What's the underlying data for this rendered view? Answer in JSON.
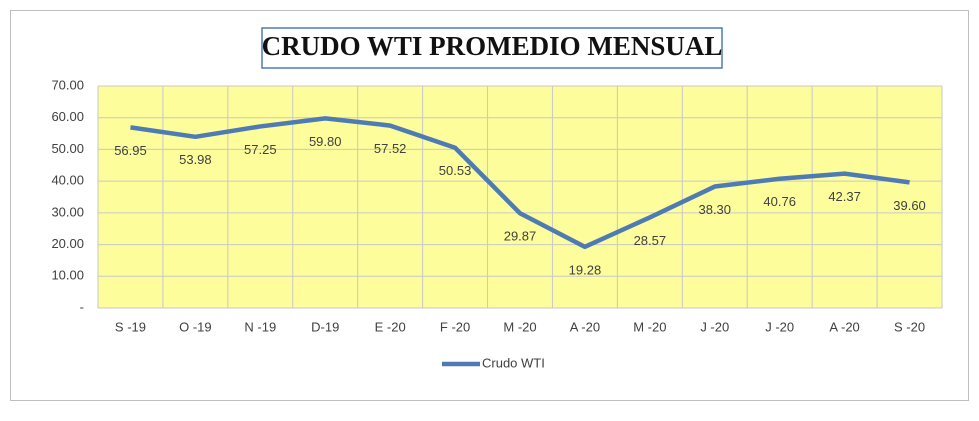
{
  "chart_data": {
    "type": "line",
    "title": "CRUDO WTI  PROMEDIO MENSUAL",
    "categories": [
      "S -19",
      "O -19",
      "N -19",
      "D-19",
      "E -20",
      "F -20",
      "M -20",
      "A -20",
      "M -20",
      "J -20",
      "J -20",
      "A -20",
      "S -20"
    ],
    "series": [
      {
        "name": "Crudo WTI",
        "color": "#4e7bb4",
        "values": [
          56.95,
          53.98,
          57.25,
          59.8,
          57.52,
          50.53,
          29.87,
          19.28,
          28.57,
          38.3,
          40.76,
          42.37,
          39.6
        ],
        "value_labels": [
          "56.95",
          "53.98",
          "57.25",
          "59.80",
          "57.52",
          "50.53",
          "29.87",
          "19.28",
          "28.57",
          "38.30",
          "40.76",
          "42.37",
          "39.60"
        ]
      }
    ],
    "ylim": [
      0,
      70
    ],
    "yticks": [
      {
        "value": 0,
        "label": "-"
      },
      {
        "value": 10,
        "label": "10.00"
      },
      {
        "value": 20,
        "label": "20.00"
      },
      {
        "value": 30,
        "label": "30.00"
      },
      {
        "value": 40,
        "label": "40.00"
      },
      {
        "value": 50,
        "label": "50.00"
      },
      {
        "value": 60,
        "label": "60.00"
      },
      {
        "value": 70,
        "label": "70.00"
      }
    ],
    "grid": true,
    "plot_background": "#fdfd9c",
    "legend": "bottom"
  }
}
